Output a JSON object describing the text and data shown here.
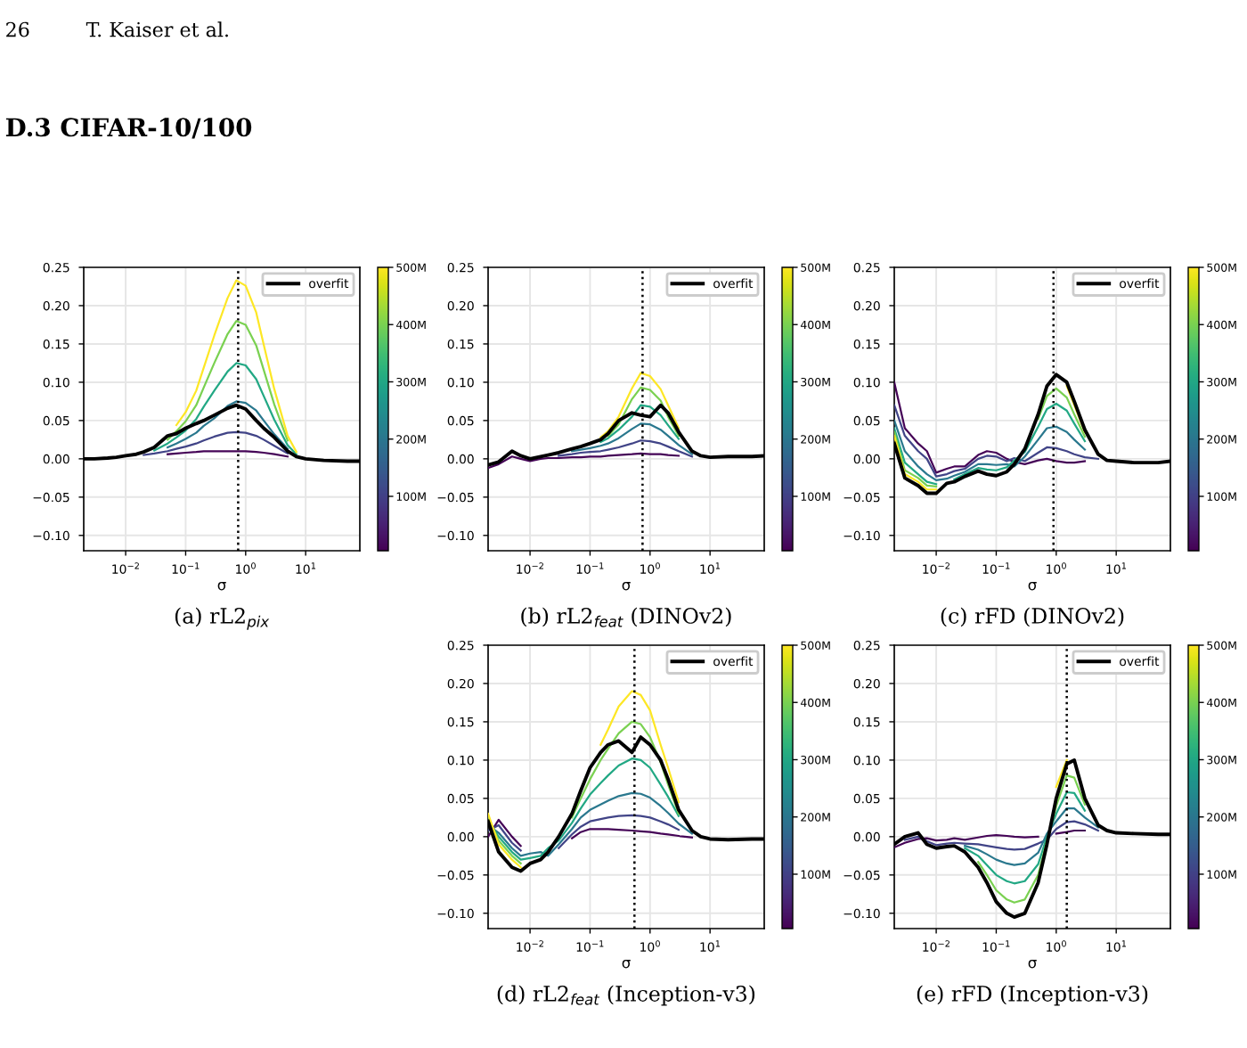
{
  "chart_data": [
    {
      "type": "line",
      "title": "(a) rL2$_{pix}$",
      "xlabel": "σ",
      "annotations": [
        "26",
        "T. Kaiser et al.",
        "D.3 CIFAR-10/100"
      ],
      "log": "x",
      "grid": true,
      "legend": "top right",
      "xlim": [
        0.002,
        80
      ],
      "xticks": [
        {
          "value": 0.01,
          "label": "10$^{−2}$"
        },
        {
          "value": 0.1,
          "label": "10$^{−1}$"
        },
        {
          "value": 1,
          "label": "10$^{0}$"
        },
        {
          "value": 10,
          "label": "10$^{1}$"
        }
      ],
      "ylim": [
        -0.12,
        0.25
      ],
      "yticks": [
        {
          "value": -0.1,
          "label": "−0.10"
        },
        {
          "value": -0.05,
          "label": "−0.05"
        },
        {
          "value": 0,
          "label": "0.00"
        },
        {
          "value": 0.05,
          "label": "0.05"
        },
        {
          "value": 0.1,
          "label": "0.10"
        },
        {
          "value": 0.15,
          "label": "0.15"
        },
        {
          "value": 0.2,
          "label": "0.20"
        },
        {
          "value": 0.25,
          "label": "0.25"
        }
      ],
      "clim": [
        5,
        500
      ],
      "cticks": [
        {
          "value": 100,
          "label": "100M"
        },
        {
          "value": 200,
          "label": "200M"
        },
        {
          "value": 300,
          "label": "300M"
        },
        {
          "value": 400,
          "label": "400M"
        },
        {
          "value": 500,
          "label": "500M"
        }
      ],
      "ref_lines": [
        {
          "axis": "x",
          "value": 0.75,
          "color": "#000000",
          "line_style": "dotted"
        }
      ],
      "x": [
        0.002,
        0.003,
        0.005,
        0.007,
        0.01,
        0.015,
        0.02,
        0.03,
        0.05,
        0.07,
        0.1,
        0.15,
        0.2,
        0.3,
        0.5,
        0.7,
        1,
        1.5,
        2,
        3,
        5,
        7,
        10,
        20,
        50,
        80
      ],
      "series": [
        {
          "color": "#450457",
          "values": [
            null,
            null,
            null,
            null,
            null,
            null,
            null,
            null,
            0.006,
            0.007,
            0.008,
            0.009,
            0.01,
            0.01,
            0.01,
            0.01,
            0.01,
            0.009,
            0.008,
            0.006,
            0.003,
            null,
            null,
            null,
            null,
            null
          ]
        },
        {
          "color": "#414487",
          "values": [
            null,
            null,
            null,
            null,
            null,
            null,
            0.005,
            0.007,
            0.01,
            0.013,
            0.016,
            0.02,
            0.024,
            0.029,
            0.034,
            0.035,
            0.034,
            0.03,
            0.025,
            0.017,
            0.007,
            null,
            null,
            null,
            null,
            null
          ]
        },
        {
          "color": "#2a788e",
          "values": [
            null,
            null,
            null,
            null,
            null,
            null,
            null,
            null,
            0.015,
            0.02,
            0.026,
            0.034,
            0.043,
            0.053,
            0.069,
            0.075,
            0.073,
            0.063,
            0.05,
            0.032,
            0.013,
            null,
            null,
            null,
            null,
            null
          ]
        },
        {
          "color": "#22a884",
          "values": [
            null,
            null,
            null,
            null,
            null,
            null,
            null,
            0.011,
            0.02,
            0.028,
            0.037,
            0.052,
            0.068,
            0.089,
            0.114,
            0.125,
            0.122,
            0.104,
            0.082,
            0.051,
            0.018,
            0.006,
            null,
            null,
            null,
            null
          ]
        },
        {
          "color": "#7ad151",
          "values": [
            null,
            null,
            null,
            null,
            null,
            null,
            null,
            null,
            0.025,
            0.036,
            0.049,
            0.07,
            0.093,
            0.125,
            0.163,
            0.18,
            0.175,
            0.148,
            0.116,
            0.071,
            0.024,
            null,
            null,
            null,
            null,
            null
          ]
        },
        {
          "color": "#fde725",
          "values": [
            null,
            null,
            null,
            null,
            null,
            null,
            null,
            null,
            null,
            0.044,
            0.061,
            0.089,
            0.119,
            0.161,
            0.21,
            0.233,
            0.226,
            0.191,
            0.149,
            0.091,
            0.03,
            0.009,
            null,
            null,
            null,
            null
          ]
        },
        {
          "name": "overfit",
          "color": "#000000",
          "values": [
            0,
            0,
            0.001,
            0.002,
            0.004,
            0.006,
            0.009,
            0.015,
            0.03,
            0.033,
            0.04,
            0.046,
            0.05,
            0.057,
            0.066,
            0.07,
            0.065,
            0.05,
            0.04,
            0.028,
            0.01,
            0.003,
            0,
            -0.002,
            -0.003,
            -0.003
          ]
        }
      ]
    },
    {
      "type": "line",
      "title": "(b) rL2$_{feat}$ (DINOv2)",
      "xlabel": "σ",
      "log": "x",
      "grid": true,
      "legend": "top right",
      "xlim": [
        0.002,
        80
      ],
      "xticks": [
        {
          "value": 0.01,
          "label": "10$^{−2}$"
        },
        {
          "value": 0.1,
          "label": "10$^{−1}$"
        },
        {
          "value": 1,
          "label": "10$^{0}$"
        },
        {
          "value": 10,
          "label": "10$^{1}$"
        }
      ],
      "ylim": [
        -0.12,
        0.25
      ],
      "yticks": [
        {
          "value": -0.1,
          "label": "−0.10"
        },
        {
          "value": -0.05,
          "label": "−0.05"
        },
        {
          "value": 0,
          "label": "0.00"
        },
        {
          "value": 0.05,
          "label": "0.05"
        },
        {
          "value": 0.1,
          "label": "0.10"
        },
        {
          "value": 0.15,
          "label": "0.15"
        },
        {
          "value": 0.2,
          "label": "0.20"
        },
        {
          "value": 0.25,
          "label": "0.25"
        }
      ],
      "clim": [
        5,
        500
      ],
      "cticks": [
        {
          "value": 100,
          "label": "100M"
        },
        {
          "value": 200,
          "label": "200M"
        },
        {
          "value": 300,
          "label": "300M"
        },
        {
          "value": 400,
          "label": "400M"
        },
        {
          "value": 500,
          "label": "500M"
        }
      ],
      "ref_lines": [
        {
          "axis": "x",
          "value": 0.75,
          "color": "#000000",
          "line_style": "dotted"
        }
      ],
      "x": [
        0.002,
        0.003,
        0.005,
        0.007,
        0.01,
        0.015,
        0.02,
        0.03,
        0.05,
        0.07,
        0.1,
        0.15,
        0.2,
        0.3,
        0.5,
        0.7,
        1,
        1.5,
        2,
        3,
        5,
        7,
        10,
        20,
        50,
        80
      ],
      "series": [
        {
          "color": "#450457",
          "values": [
            -0.012,
            -0.007,
            0.003,
            0,
            -0.003,
            0,
            0.001,
            0.001,
            0.002,
            0.002,
            0.003,
            0.003,
            0.004,
            0.005,
            0.006,
            0.007,
            0.006,
            0.006,
            0.005,
            0.004,
            null,
            null,
            null,
            null,
            null,
            null
          ]
        },
        {
          "color": "#414487",
          "values": [
            null,
            null,
            null,
            null,
            null,
            null,
            null,
            0.004,
            0.006,
            0.008,
            0.009,
            0.01,
            0.012,
            0.015,
            0.02,
            0.024,
            0.023,
            0.02,
            0.016,
            0.01,
            0.003,
            null,
            null,
            null,
            null,
            null
          ]
        },
        {
          "color": "#2a788e",
          "values": [
            null,
            null,
            null,
            null,
            null,
            null,
            null,
            null,
            0.01,
            0.012,
            0.014,
            0.017,
            0.02,
            0.027,
            0.039,
            0.046,
            0.045,
            0.038,
            0.03,
            0.018,
            0.006,
            null,
            null,
            null,
            null,
            null
          ]
        },
        {
          "color": "#22a884",
          "values": [
            null,
            null,
            null,
            null,
            null,
            null,
            null,
            null,
            null,
            null,
            null,
            0.022,
            0.027,
            0.038,
            0.055,
            0.07,
            0.068,
            0.057,
            0.044,
            0.026,
            null,
            null,
            null,
            null,
            null,
            null
          ]
        },
        {
          "color": "#7ad151",
          "values": [
            null,
            null,
            null,
            null,
            null,
            null,
            null,
            null,
            null,
            null,
            null,
            null,
            0.03,
            0.045,
            0.078,
            0.093,
            0.09,
            0.076,
            0.055,
            0.03,
            null,
            null,
            null,
            null,
            null,
            null
          ]
        },
        {
          "color": "#fde725",
          "values": [
            null,
            null,
            null,
            null,
            null,
            null,
            null,
            null,
            null,
            null,
            null,
            0.028,
            0.036,
            0.055,
            0.092,
            0.112,
            0.108,
            0.091,
            0.07,
            0.04,
            null,
            null,
            null,
            null,
            null,
            null
          ]
        },
        {
          "name": "overfit",
          "color": "#000000",
          "values": [
            -0.008,
            -0.004,
            0.01,
            0.004,
            0,
            0.003,
            0.005,
            0.008,
            0.013,
            0.016,
            0.02,
            0.025,
            0.033,
            0.05,
            0.06,
            0.057,
            0.055,
            0.07,
            0.06,
            0.035,
            0.01,
            0.004,
            0.002,
            0.003,
            0.003,
            0.004
          ]
        }
      ]
    },
    {
      "type": "line",
      "title": "(c) rFD (DINOv2)",
      "xlabel": "σ",
      "log": "x",
      "grid": true,
      "legend": "top right",
      "xlim": [
        0.002,
        80
      ],
      "xticks": [
        {
          "value": 0.01,
          "label": "10$^{−2}$"
        },
        {
          "value": 0.1,
          "label": "10$^{−1}$"
        },
        {
          "value": 1,
          "label": "10$^{0}$"
        },
        {
          "value": 10,
          "label": "10$^{1}$"
        }
      ],
      "ylim": [
        -0.12,
        0.25
      ],
      "yticks": [
        {
          "value": -0.1,
          "label": "−0.10"
        },
        {
          "value": -0.05,
          "label": "−0.05"
        },
        {
          "value": 0,
          "label": "0.00"
        },
        {
          "value": 0.05,
          "label": "0.05"
        },
        {
          "value": 0.1,
          "label": "0.10"
        },
        {
          "value": 0.15,
          "label": "0.15"
        },
        {
          "value": 0.2,
          "label": "0.20"
        },
        {
          "value": 0.25,
          "label": "0.25"
        }
      ],
      "clim": [
        5,
        500
      ],
      "cticks": [
        {
          "value": 100,
          "label": "100M"
        },
        {
          "value": 200,
          "label": "200M"
        },
        {
          "value": 300,
          "label": "300M"
        },
        {
          "value": 400,
          "label": "400M"
        },
        {
          "value": 500,
          "label": "500M"
        }
      ],
      "ref_lines": [
        {
          "axis": "x",
          "value": 0.9,
          "color": "#000000",
          "line_style": "dotted"
        }
      ],
      "x": [
        0.002,
        0.003,
        0.005,
        0.007,
        0.01,
        0.015,
        0.02,
        0.03,
        0.05,
        0.07,
        0.1,
        0.15,
        0.2,
        0.3,
        0.5,
        0.7,
        1,
        1.5,
        2,
        3,
        5,
        7,
        10,
        20,
        50,
        80
      ],
      "series": [
        {
          "color": "#450457",
          "values": [
            0.1,
            0.04,
            0.02,
            0.01,
            -0.018,
            -0.013,
            -0.01,
            -0.01,
            0.005,
            0.01,
            0.008,
            0,
            -0.004,
            -0.007,
            -0.002,
            0,
            -0.003,
            -0.005,
            -0.005,
            -0.003,
            null,
            null,
            null,
            null,
            null,
            null
          ]
        },
        {
          "color": "#414487",
          "values": [
            0.07,
            0.03,
            0.01,
            0,
            -0.023,
            -0.02,
            -0.016,
            -0.013,
            0,
            0.004,
            0.003,
            -0.003,
            0.001,
            -0.003,
            0.008,
            0.015,
            0.014,
            0.01,
            0.006,
            0.002,
            0,
            null,
            null,
            null,
            null,
            null
          ]
        },
        {
          "color": "#2a788e",
          "values": [
            0.05,
            0.01,
            -0.01,
            -0.02,
            -0.028,
            -0.026,
            -0.022,
            -0.017,
            -0.007,
            -0.007,
            -0.008,
            -0.007,
            -0.01,
            0.003,
            0.025,
            0.04,
            0.042,
            0.035,
            0.025,
            0.012,
            null,
            null,
            null,
            null,
            null,
            null
          ]
        },
        {
          "color": "#22a884",
          "values": [
            0.04,
            -0.005,
            -0.02,
            -0.03,
            -0.033,
            null,
            -0.027,
            -0.02,
            -0.012,
            -0.014,
            -0.015,
            -0.011,
            -0.002,
            0.009,
            0.042,
            0.065,
            0.072,
            0.063,
            0.046,
            0.023,
            null,
            null,
            null,
            null,
            null,
            null
          ]
        },
        {
          "color": "#7ad151",
          "values": [
            0.035,
            -0.015,
            -0.025,
            -0.035,
            -0.036,
            null,
            null,
            null,
            null,
            null,
            null,
            null,
            null,
            null,
            0.052,
            0.082,
            0.092,
            0.08,
            0.058,
            0.029,
            null,
            null,
            null,
            null,
            null,
            null
          ]
        },
        {
          "color": "#fde725",
          "values": [
            0.03,
            -0.02,
            -0.03,
            -0.04,
            -0.04,
            null,
            null,
            null,
            null,
            null,
            null,
            null,
            null,
            null,
            null,
            null,
            null,
            0.095,
            0.07,
            0.035,
            null,
            null,
            null,
            null,
            null,
            null
          ]
        },
        {
          "name": "overfit",
          "color": "#000000",
          "values": [
            0.02,
            -0.025,
            -0.035,
            -0.045,
            -0.045,
            -0.032,
            -0.03,
            -0.023,
            -0.016,
            -0.02,
            -0.022,
            -0.017,
            -0.007,
            0.013,
            0.058,
            0.095,
            0.11,
            0.1,
            0.075,
            0.038,
            0.006,
            -0.002,
            -0.003,
            -0.005,
            -0.005,
            -0.003
          ]
        }
      ]
    },
    {
      "type": "line",
      "title": "(d) rL2$_{feat}$ (Inception-v3)",
      "xlabel": "σ",
      "log": "x",
      "grid": true,
      "legend": "top right",
      "xlim": [
        0.002,
        80
      ],
      "xticks": [
        {
          "value": 0.01,
          "label": "10$^{−2}$"
        },
        {
          "value": 0.1,
          "label": "10$^{−1}$"
        },
        {
          "value": 1,
          "label": "10$^{0}$"
        },
        {
          "value": 10,
          "label": "10$^{1}$"
        }
      ],
      "ylim": [
        -0.12,
        0.25
      ],
      "yticks": [
        {
          "value": -0.1,
          "label": "−0.10"
        },
        {
          "value": -0.05,
          "label": "−0.05"
        },
        {
          "value": 0,
          "label": "0.00"
        },
        {
          "value": 0.05,
          "label": "0.05"
        },
        {
          "value": 0.1,
          "label": "0.10"
        },
        {
          "value": 0.15,
          "label": "0.15"
        },
        {
          "value": 0.2,
          "label": "0.20"
        },
        {
          "value": 0.25,
          "label": "0.25"
        }
      ],
      "clim": [
        5,
        500
      ],
      "cticks": [
        {
          "value": 100,
          "label": "100M"
        },
        {
          "value": 200,
          "label": "200M"
        },
        {
          "value": 300,
          "label": "300M"
        },
        {
          "value": 400,
          "label": "400M"
        },
        {
          "value": 500,
          "label": "500M"
        }
      ],
      "ref_lines": [
        {
          "axis": "x",
          "value": 0.55,
          "color": "#000000",
          "line_style": "dotted"
        }
      ],
      "x": [
        0.002,
        0.003,
        0.005,
        0.007,
        0.01,
        0.015,
        0.02,
        0.03,
        0.05,
        0.07,
        0.1,
        0.15,
        0.2,
        0.3,
        0.5,
        0.7,
        1,
        1.5,
        2,
        3,
        5,
        7,
        10,
        20,
        50,
        80
      ],
      "series": [
        {
          "color": "#450457",
          "values": [
            0,
            0.022,
            0,
            -0.012,
            null,
            null,
            null,
            null,
            -0.002,
            0.006,
            0.01,
            0.01,
            0.01,
            0.009,
            0.008,
            0.007,
            0.006,
            0.004,
            0.003,
            0.001,
            -0.001,
            null,
            null,
            null,
            null,
            null
          ]
        },
        {
          "color": "#414487",
          "values": [
            0.008,
            0.015,
            -0.008,
            -0.018,
            null,
            null,
            null,
            -0.015,
            0.003,
            0.013,
            0.02,
            0.023,
            0.025,
            0.027,
            0.028,
            0.027,
            0.025,
            0.02,
            0.016,
            0.009,
            null,
            null,
            null,
            null,
            null,
            null
          ]
        },
        {
          "color": "#2a788e",
          "values": [
            0.015,
            0.005,
            -0.015,
            -0.025,
            -0.022,
            -0.02,
            -0.025,
            -0.01,
            0.01,
            0.025,
            0.035,
            0.042,
            0.047,
            0.053,
            0.057,
            0.056,
            0.051,
            0.04,
            0.031,
            0.017,
            0.004,
            null,
            null,
            null,
            null,
            null
          ]
        },
        {
          "color": "#22a884",
          "values": [
            0.02,
            0,
            -0.02,
            -0.03,
            -0.028,
            -0.025,
            -0.015,
            -0.005,
            0.018,
            0.037,
            0.055,
            0.07,
            0.08,
            0.093,
            0.102,
            0.1,
            0.09,
            0.068,
            0.052,
            0.027,
            null,
            null,
            null,
            null,
            null,
            null
          ]
        },
        {
          "color": "#7ad151",
          "values": [
            0.025,
            -0.005,
            -0.025,
            -0.035,
            null,
            null,
            null,
            null,
            0.025,
            0.05,
            0.075,
            0.1,
            0.115,
            0.135,
            0.15,
            0.147,
            0.13,
            0.097,
            0.068,
            0.03,
            null,
            null,
            null,
            null,
            null,
            null
          ]
        },
        {
          "color": "#fde725",
          "values": [
            0.03,
            -0.01,
            -0.03,
            -0.04,
            null,
            null,
            null,
            null,
            null,
            null,
            null,
            0.12,
            0.14,
            0.17,
            0.19,
            0.185,
            0.165,
            0.12,
            0.09,
            0.045,
            null,
            null,
            null,
            null,
            null,
            null
          ]
        },
        {
          "name": "overfit",
          "color": "#000000",
          "values": [
            0.02,
            -0.02,
            -0.04,
            -0.045,
            -0.035,
            -0.03,
            -0.02,
            0,
            0.03,
            0.06,
            0.09,
            0.11,
            0.12,
            0.125,
            0.11,
            0.13,
            0.12,
            0.1,
            0.075,
            0.035,
            0.008,
            0,
            -0.003,
            -0.004,
            -0.003,
            -0.003
          ]
        }
      ]
    },
    {
      "type": "line",
      "title": "(e) rFD (Inception-v3)",
      "xlabel": "σ",
      "log": "x",
      "grid": true,
      "legend": "top right",
      "xlim": [
        0.002,
        80
      ],
      "xticks": [
        {
          "value": 0.01,
          "label": "10$^{−2}$"
        },
        {
          "value": 0.1,
          "label": "10$^{−1}$"
        },
        {
          "value": 1,
          "label": "10$^{0}$"
        },
        {
          "value": 10,
          "label": "10$^{1}$"
        }
      ],
      "ylim": [
        -0.12,
        0.25
      ],
      "yticks": [
        {
          "value": -0.1,
          "label": "−0.10"
        },
        {
          "value": -0.05,
          "label": "−0.05"
        },
        {
          "value": 0,
          "label": "0.00"
        },
        {
          "value": 0.05,
          "label": "0.05"
        },
        {
          "value": 0.1,
          "label": "0.10"
        },
        {
          "value": 0.15,
          "label": "0.15"
        },
        {
          "value": 0.2,
          "label": "0.20"
        },
        {
          "value": 0.25,
          "label": "0.25"
        }
      ],
      "clim": [
        5,
        500
      ],
      "cticks": [
        {
          "value": 100,
          "label": "100M"
        },
        {
          "value": 200,
          "label": "200M"
        },
        {
          "value": 300,
          "label": "300M"
        },
        {
          "value": 400,
          "label": "400M"
        },
        {
          "value": 500,
          "label": "500M"
        }
      ],
      "ref_lines": [
        {
          "axis": "x",
          "value": 1.5,
          "color": "#000000",
          "line_style": "dotted"
        }
      ],
      "x": [
        0.002,
        0.003,
        0.005,
        0.007,
        0.01,
        0.015,
        0.02,
        0.03,
        0.05,
        0.07,
        0.1,
        0.15,
        0.2,
        0.3,
        0.5,
        0.7,
        1,
        1.5,
        2,
        3,
        5,
        7,
        10,
        20,
        50,
        80
      ],
      "series": [
        {
          "color": "#450457",
          "values": [
            -0.014,
            -0.008,
            -0.003,
            -0.002,
            -0.005,
            -0.004,
            -0.002,
            -0.004,
            -0.001,
            0.001,
            0.002,
            0.001,
            0,
            -0.001,
            0,
            null,
            0.004,
            0.006,
            0.008,
            0.008,
            null,
            null,
            null,
            null,
            null,
            null
          ]
        },
        {
          "color": "#414487",
          "values": [
            null,
            -0.004,
            0,
            -0.006,
            -0.011,
            -0.009,
            -0.008,
            -0.009,
            -0.01,
            -0.012,
            -0.014,
            -0.016,
            -0.017,
            -0.016,
            -0.009,
            -0.004,
            0.01,
            0.019,
            0.02,
            0.016,
            0.008,
            null,
            null,
            null,
            null,
            null
          ]
        },
        {
          "color": "#2a788e",
          "values": [
            null,
            null,
            null,
            null,
            null,
            null,
            null,
            -0.012,
            -0.017,
            -0.023,
            -0.03,
            -0.035,
            -0.037,
            -0.035,
            -0.021,
            0.004,
            0.02,
            0.037,
            0.037,
            0.025,
            0.012,
            null,
            null,
            null,
            null,
            null
          ]
        },
        {
          "color": "#22a884",
          "values": [
            null,
            null,
            null,
            null,
            null,
            null,
            null,
            -0.015,
            -0.025,
            -0.037,
            -0.05,
            -0.058,
            -0.061,
            -0.058,
            -0.036,
            0,
            0.03,
            0.058,
            0.057,
            0.034,
            null,
            null,
            null,
            null,
            null,
            null
          ]
        },
        {
          "color": "#7ad151",
          "values": [
            null,
            null,
            null,
            null,
            null,
            null,
            null,
            null,
            -0.033,
            -0.05,
            -0.07,
            -0.082,
            -0.086,
            -0.082,
            -0.05,
            -0.005,
            0.04,
            0.08,
            0.077,
            0.042,
            null,
            null,
            null,
            null,
            null,
            null
          ]
        },
        {
          "color": "#fde725",
          "values": [
            null,
            null,
            null,
            null,
            null,
            null,
            null,
            null,
            null,
            null,
            null,
            null,
            null,
            null,
            null,
            null,
            0.065,
            0.1,
            null,
            null,
            null,
            null,
            null,
            null,
            null,
            null
          ]
        },
        {
          "name": "overfit",
          "color": "#000000",
          "values": [
            -0.01,
            0,
            0.005,
            -0.01,
            -0.015,
            -0.013,
            -0.012,
            -0.02,
            -0.04,
            -0.06,
            -0.085,
            -0.1,
            -0.105,
            -0.1,
            -0.06,
            -0.01,
            0.05,
            0.095,
            0.1,
            0.05,
            0.015,
            0.008,
            0.005,
            0.004,
            0.003,
            0.003
          ]
        }
      ]
    }
  ]
}
